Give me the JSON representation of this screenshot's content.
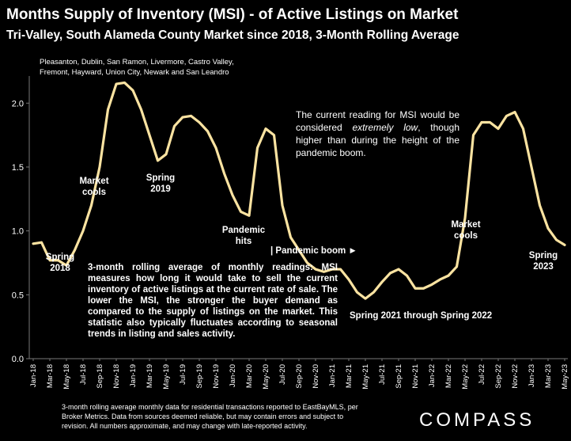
{
  "chart_data": {
    "type": "line",
    "title": "Months Supply of Inventory (MSI) - of Active Listings on Market",
    "subtitle": "Tri-Valley, South Alameda County Market since 2018, 3-Month Rolling Average",
    "region_note": [
      "Pleasanton, Dublin, San Ramon, Livermore, Castro Valley,",
      "Fremont, Hayward, Union City, Newark and San Leandro"
    ],
    "categories": [
      "Jan-18",
      null,
      "Mar-18",
      null,
      "May-18",
      null,
      "Jul-18",
      null,
      "Sep-18",
      null,
      "Nov-18",
      null,
      "Jan-19",
      null,
      "Mar-19",
      null,
      "May-19",
      null,
      "Jul-19",
      null,
      "Sep-19",
      null,
      "Nov-19",
      null,
      "Jan-20",
      null,
      "Mar-20",
      null,
      "May-20",
      null,
      "Jul-20",
      null,
      "Sep-20",
      null,
      "Nov-20",
      null,
      "Jan-21",
      null,
      "Mar-21",
      null,
      "May-21",
      null,
      "Jul-21",
      null,
      "Sep-21",
      null,
      "Nov-21",
      null,
      "Jan-22",
      null,
      "Mar-22",
      null,
      "May-22",
      null,
      "Jul-22",
      null,
      "Sep-22",
      null,
      "Nov-22",
      null,
      "Jan-23",
      null,
      "Mar-23",
      null,
      "May-23"
    ],
    "series": [
      {
        "name": "MSI",
        "color": "#fbe3a1",
        "values": [
          0.9,
          0.91,
          0.77,
          0.77,
          0.73,
          0.85,
          1.0,
          1.2,
          1.5,
          1.95,
          2.15,
          2.16,
          2.1,
          1.95,
          1.75,
          1.55,
          1.6,
          1.82,
          1.89,
          1.9,
          1.85,
          1.78,
          1.65,
          1.45,
          1.28,
          1.15,
          1.12,
          1.65,
          1.8,
          1.75,
          1.2,
          0.95,
          0.85,
          0.75,
          0.7,
          0.68,
          0.7,
          0.7,
          0.62,
          0.52,
          0.47,
          0.52,
          0.6,
          0.67,
          0.7,
          0.65,
          0.55,
          0.55,
          0.58,
          0.62,
          0.65,
          0.72,
          1.1,
          1.75,
          1.85,
          1.85,
          1.8,
          1.9,
          1.93,
          1.8,
          1.5,
          1.2,
          1.02,
          0.93,
          0.89
        ]
      }
    ],
    "ylim": [
      0,
      2.2
    ],
    "yticks": [
      {
        "value": 0,
        "label": "0.0"
      },
      0.5,
      {
        "value": 1,
        "label": "1.0"
      },
      1.5,
      {
        "value": 2,
        "label": "2.0"
      }
    ],
    "annotations": [
      "Spring 2018",
      "Market cools",
      "Spring 2019",
      "Pandemic hits",
      "| Pandemic boom ►",
      "Spring 2021 through Spring 2022",
      "Market cools",
      "Spring 2023"
    ],
    "note_top": [
      "The current reading for MSI would be considered ",
      "extremely low",
      ", though higher than during the height of the pandemic boom."
    ],
    "note_bottom": "3-month rolling average of monthly readings: MSI measures how long it would take to sell the current inventory of active listings at the current rate of sale. The lower the MSI, the stronger the buyer demand as compared to the supply of listings on the market. This statistic also typically fluctuates according to seasonal trends in listing and sales activity.",
    "footer": [
      "3-month rolling average monthly data for residential transactions reported to EastBayMLS, per",
      "Broker Metrics. Data from sources deemed reliable, but may contain errors and subject to",
      "revision. All numbers approximate, and may change with late-reported activity."
    ],
    "brand": "COMPASS"
  }
}
